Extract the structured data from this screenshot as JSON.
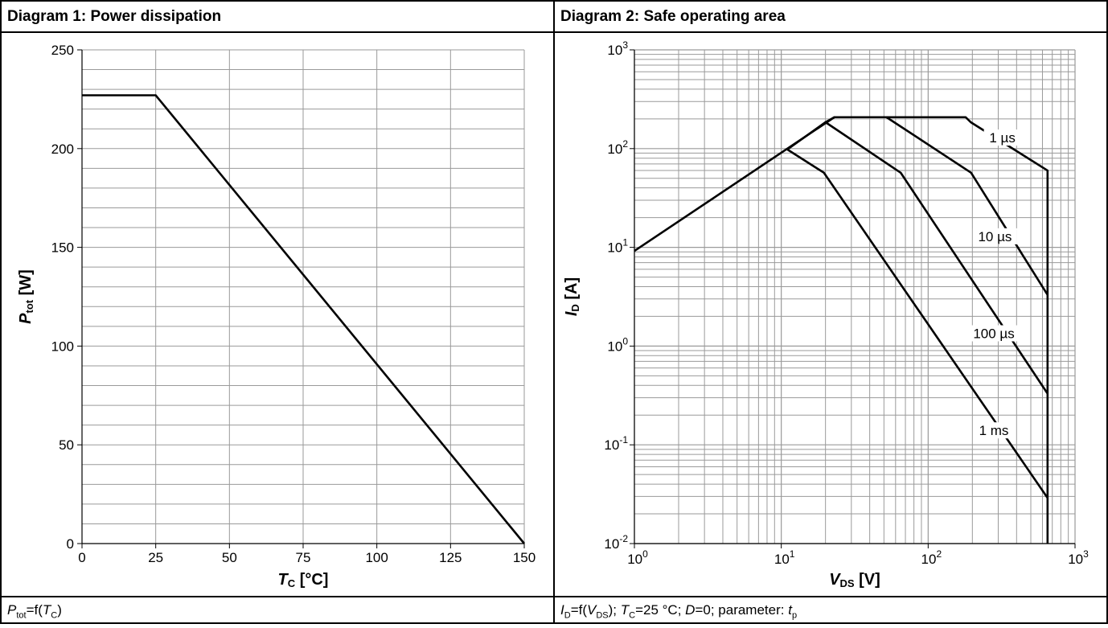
{
  "diagram1": {
    "title": "Diagram 1: Power dissipation",
    "footer": {
      "p": "P",
      "p_sub": "tot",
      "eq": "=f(",
      "t": "T",
      "t_sub": "C",
      "close": ")"
    },
    "chart_data": {
      "type": "line",
      "xlabel": {
        "main": "T",
        "sub": "C",
        "unit": " [°C]"
      },
      "ylabel": {
        "main": "P",
        "sub": "tot",
        "unit": " [W]"
      },
      "xlim": [
        0,
        150
      ],
      "ylim": [
        0,
        250
      ],
      "x_ticks": [
        0,
        25,
        50,
        75,
        100,
        125,
        150
      ],
      "y_ticks": [
        0,
        50,
        100,
        150,
        200,
        250
      ],
      "x_tick_labels": [
        "0",
        "25",
        "50",
        "75",
        "100",
        "125",
        "150"
      ],
      "y_tick_labels": [
        "0",
        "50",
        "100",
        "150",
        "200",
        "250"
      ],
      "x_minor_step": 25,
      "y_minor_step": 10,
      "grid": true,
      "series": [
        {
          "x": [
            0,
            25,
            150
          ],
          "y": [
            227,
            227,
            0
          ]
        }
      ]
    }
  },
  "diagram2": {
    "title": "Diagram 2: Safe operating area",
    "footer": {
      "i": "I",
      "i_sub": "D",
      "eq": "=f(",
      "v": "V",
      "v_sub": "DS",
      "rest1": "); ",
      "t": "T",
      "t_sub": "C",
      "rest2": "=25 °C; ",
      "d": "D",
      "rest3": "=0; parameter: ",
      "tp": "t",
      "tp_sub": "p"
    },
    "chart_data": {
      "type": "line",
      "x_scale": "log",
      "y_scale": "log",
      "xlabel": {
        "main": "V",
        "sub": "DS",
        "unit": " [V]"
      },
      "ylabel": {
        "main": "I",
        "sub": "D",
        "unit": " [A]"
      },
      "xlim": [
        1,
        1000
      ],
      "ylim": [
        0.01,
        1000
      ],
      "x_tick_labels": [
        {
          "base": "10",
          "exp": "0"
        },
        {
          "base": "10",
          "exp": "1"
        },
        {
          "base": "10",
          "exp": "2"
        },
        {
          "base": "10",
          "exp": "3"
        }
      ],
      "y_tick_labels": [
        {
          "base": "10",
          "exp": "-2"
        },
        {
          "base": "10",
          "exp": "-1"
        },
        {
          "base": "10",
          "exp": "0"
        },
        {
          "base": "10",
          "exp": "1"
        },
        {
          "base": "10",
          "exp": "2"
        },
        {
          "base": "10",
          "exp": "3"
        }
      ],
      "grid": true,
      "series": [
        {
          "name": "1 µs",
          "x": [
            1,
            23,
            180,
            195,
            650,
            650
          ],
          "y": [
            9.2,
            208,
            208,
            185,
            60,
            0.01
          ],
          "label_at": [
            320,
            120
          ]
        },
        {
          "name": "10 µs",
          "x": [
            20,
            23,
            52,
            196,
            650
          ],
          "y": [
            185,
            208,
            208,
            57,
            3.3
          ],
          "label_at": [
            285,
            12
          ]
        },
        {
          "name": "100 µs",
          "x": [
            11,
            20,
            65,
            650
          ],
          "y": [
            98,
            185,
            57,
            0.33
          ],
          "label_at": [
            280,
            1.25
          ]
        },
        {
          "name": "1 ms",
          "x": [
            11,
            19.5,
            650
          ],
          "y": [
            98,
            57,
            0.029
          ],
          "label_at": [
            280,
            0.13
          ]
        }
      ]
    }
  }
}
